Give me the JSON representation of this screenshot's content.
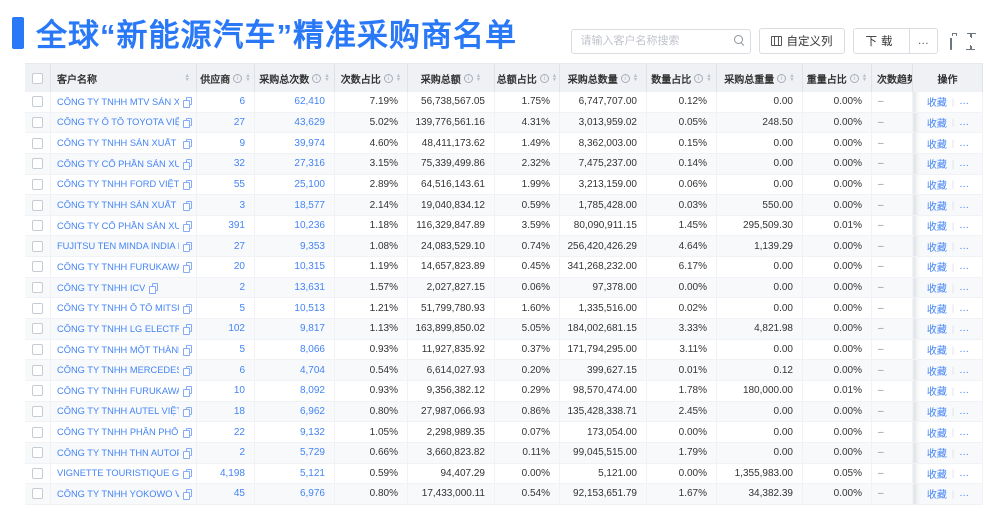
{
  "page": {
    "title": "全球“新能源汽车”精准采购商名单"
  },
  "colors": {
    "accent": "#2878f7",
    "link": "#4384f5",
    "header_bg": "#eff1f5",
    "zebra": "#f8f9fb",
    "text": "#333333",
    "icon_gray": "#6e7682"
  },
  "toolbar": {
    "search_placeholder": "请输入客户名称搜索",
    "customize_columns_label": "自定义列",
    "download_label": "下载",
    "more_label": "…"
  },
  "icons": {
    "info": "i",
    "sort_up": "▲",
    "sort_down": "▼"
  },
  "table": {
    "action_labels": {
      "favorite": "收藏",
      "more": "…",
      "divider": "|"
    },
    "columns": [
      {
        "key": "check",
        "label": "",
        "type": "checkbox"
      },
      {
        "key": "name",
        "label": "客户名称",
        "sort": true
      },
      {
        "key": "supplier",
        "label": "供应商",
        "info": true,
        "sort": true
      },
      {
        "key": "times",
        "label": "采购总次数",
        "info": true,
        "sort": true
      },
      {
        "key": "times_pct",
        "label": "次数占比",
        "info": true,
        "sort": true
      },
      {
        "key": "amount",
        "label": "采购总额",
        "info": true,
        "sort": true
      },
      {
        "key": "amount_pct",
        "label": "总额占比",
        "info": true,
        "sort": true
      },
      {
        "key": "qty",
        "label": "采购总数量",
        "info": true,
        "sort": true
      },
      {
        "key": "qty_pct",
        "label": "数量占比",
        "info": true,
        "sort": true
      },
      {
        "key": "weight",
        "label": "采购总重量",
        "info": true,
        "sort": true
      },
      {
        "key": "weight_pct",
        "label": "重量占比",
        "info": true,
        "sort": true
      },
      {
        "key": "trend",
        "label": "次数趋势"
      },
      {
        "key": "action",
        "label": "操作"
      }
    ],
    "rows": [
      {
        "name": "CÔNG TY TNHH MTV SẢN XUẤ...",
        "supplier": "6",
        "times": "62,410",
        "times_pct": "7.19%",
        "amount": "56,738,567.05",
        "amount_pct": "1.75%",
        "qty": "6,747,707.00",
        "qty_pct": "0.12%",
        "weight": "0.00",
        "weight_pct": "0.00%",
        "trend": "–"
      },
      {
        "name": "CÔNG TY Ô TÔ TOYOTA VIỆT ...",
        "supplier": "27",
        "times": "43,629",
        "times_pct": "5.02%",
        "amount": "139,776,561.16",
        "amount_pct": "4.31%",
        "qty": "3,013,959.02",
        "qty_pct": "0.05%",
        "weight": "248.50",
        "weight_pct": "0.00%",
        "trend": "–"
      },
      {
        "name": "CÔNG TY TNHH SẢN XUẤT VÀ ...",
        "supplier": "9",
        "times": "39,974",
        "times_pct": "4.60%",
        "amount": "48,411,173.62",
        "amount_pct": "1.49%",
        "qty": "8,362,003.00",
        "qty_pct": "0.15%",
        "weight": "0.00",
        "weight_pct": "0.00%",
        "trend": "–"
      },
      {
        "name": "CÔNG TY CỔ PHẦN SẢN XUẤT...",
        "supplier": "32",
        "times": "27,316",
        "times_pct": "3.15%",
        "amount": "75,339,499.86",
        "amount_pct": "2.32%",
        "qty": "7,475,237.00",
        "qty_pct": "0.14%",
        "weight": "0.00",
        "weight_pct": "0.00%",
        "trend": "–"
      },
      {
        "name": "CÔNG TY TNHH FORD VIỆT NAM",
        "supplier": "55",
        "times": "25,100",
        "times_pct": "2.89%",
        "amount": "64,516,143.61",
        "amount_pct": "1.99%",
        "qty": "3,213,159.00",
        "qty_pct": "0.06%",
        "weight": "0.00",
        "weight_pct": "0.00%",
        "trend": "–"
      },
      {
        "name": "CÔNG TY TNHH SẢN XUẤT VÀ ...",
        "supplier": "3",
        "times": "18,577",
        "times_pct": "2.14%",
        "amount": "19,040,834.12",
        "amount_pct": "0.59%",
        "qty": "1,785,428.00",
        "qty_pct": "0.03%",
        "weight": "550.00",
        "weight_pct": "0.00%",
        "trend": "–"
      },
      {
        "name": "CÔNG TY CỔ PHẦN SẢN XUẤT...",
        "supplier": "391",
        "times": "10,236",
        "times_pct": "1.18%",
        "amount": "116,329,847.89",
        "amount_pct": "3.59%",
        "qty": "80,090,911.15",
        "qty_pct": "1.45%",
        "weight": "295,509.30",
        "weight_pct": "0.01%",
        "trend": "–"
      },
      {
        "name": "FUJITSU TEN MINDA INDIA PVT...",
        "supplier": "27",
        "times": "9,353",
        "times_pct": "1.08%",
        "amount": "24,083,529.10",
        "amount_pct": "0.74%",
        "qty": "256,420,426.29",
        "qty_pct": "4.64%",
        "weight": "1,139.29",
        "weight_pct": "0.00%",
        "trend": "–"
      },
      {
        "name": "CÔNG TY TNHH FURUKAWA A...",
        "supplier": "20",
        "times": "10,315",
        "times_pct": "1.19%",
        "amount": "14,657,823.89",
        "amount_pct": "0.45%",
        "qty": "341,268,232.00",
        "qty_pct": "6.17%",
        "weight": "0.00",
        "weight_pct": "0.00%",
        "trend": "–"
      },
      {
        "name": "CÔNG TY TNHH ICV",
        "supplier": "2",
        "times": "13,631",
        "times_pct": "1.57%",
        "amount": "2,027,827.15",
        "amount_pct": "0.06%",
        "qty": "97,378.00",
        "qty_pct": "0.00%",
        "weight": "0.00",
        "weight_pct": "0.00%",
        "trend": "–"
      },
      {
        "name": "CÔNG TY TNHH Ô TÔ MITSUBI...",
        "supplier": "5",
        "times": "10,513",
        "times_pct": "1.21%",
        "amount": "51,799,780.93",
        "amount_pct": "1.60%",
        "qty": "1,335,516.00",
        "qty_pct": "0.02%",
        "weight": "0.00",
        "weight_pct": "0.00%",
        "trend": "–"
      },
      {
        "name": "CÔNG TY TNHH LG ELECTRON...",
        "supplier": "102",
        "times": "9,817",
        "times_pct": "1.13%",
        "amount": "163,899,850.02",
        "amount_pct": "5.05%",
        "qty": "184,002,681.15",
        "qty_pct": "3.33%",
        "weight": "4,821.98",
        "weight_pct": "0.00%",
        "trend": "–"
      },
      {
        "name": "CÔNG TY TNHH MỘT THÀNH V...",
        "supplier": "5",
        "times": "8,066",
        "times_pct": "0.93%",
        "amount": "11,927,835.92",
        "amount_pct": "0.37%",
        "qty": "171,794,295.00",
        "qty_pct": "3.11%",
        "weight": "0.00",
        "weight_pct": "0.00%",
        "trend": "–"
      },
      {
        "name": "CÔNG TY TNHH MERCEDES-B...",
        "supplier": "6",
        "times": "4,704",
        "times_pct": "0.54%",
        "amount": "6,614,027.93",
        "amount_pct": "0.20%",
        "qty": "399,627.15",
        "qty_pct": "0.01%",
        "weight": "0.12",
        "weight_pct": "0.00%",
        "trend": "–"
      },
      {
        "name": "CÔNG TY TNHH FURUKAWA A...",
        "supplier": "10",
        "times": "8,092",
        "times_pct": "0.93%",
        "amount": "9,356,382.12",
        "amount_pct": "0.29%",
        "qty": "98,570,474.00",
        "qty_pct": "1.78%",
        "weight": "180,000.00",
        "weight_pct": "0.01%",
        "trend": "–"
      },
      {
        "name": "CÔNG TY TNHH AUTEL VIỆT N...",
        "supplier": "18",
        "times": "6,962",
        "times_pct": "0.80%",
        "amount": "27,987,066.93",
        "amount_pct": "0.86%",
        "qty": "135,428,338.71",
        "qty_pct": "2.45%",
        "weight": "0.00",
        "weight_pct": "0.00%",
        "trend": "–"
      },
      {
        "name": "CÔNG TY TNHH PHÂN PHỐI T...",
        "supplier": "22",
        "times": "9,132",
        "times_pct": "1.05%",
        "amount": "2,298,989.35",
        "amount_pct": "0.07%",
        "qty": "173,054.00",
        "qty_pct": "0.00%",
        "weight": "0.00",
        "weight_pct": "0.00%",
        "trend": "–"
      },
      {
        "name": "CÔNG TY TNHH THN AUTOPAR...",
        "supplier": "2",
        "times": "5,729",
        "times_pct": "0.66%",
        "amount": "3,660,823.82",
        "amount_pct": "0.11%",
        "qty": "99,045,515.00",
        "qty_pct": "1.79%",
        "weight": "0.00",
        "weight_pct": "0.00%",
        "trend": "–"
      },
      {
        "name": "VIGNETTE TOURISTIQUE G UNI...",
        "supplier": "4,198",
        "times": "5,121",
        "times_pct": "0.59%",
        "amount": "94,407.29",
        "amount_pct": "0.00%",
        "qty": "5,121.00",
        "qty_pct": "0.00%",
        "weight": "1,355,983.00",
        "weight_pct": "0.05%",
        "trend": "–"
      },
      {
        "name": "CÔNG TY TNHH YOKOWO VIỆT...",
        "supplier": "45",
        "times": "6,976",
        "times_pct": "0.80%",
        "amount": "17,433,000.11",
        "amount_pct": "0.54%",
        "qty": "92,153,651.79",
        "qty_pct": "1.67%",
        "weight": "34,382.39",
        "weight_pct": "0.00%",
        "trend": "–"
      }
    ]
  }
}
